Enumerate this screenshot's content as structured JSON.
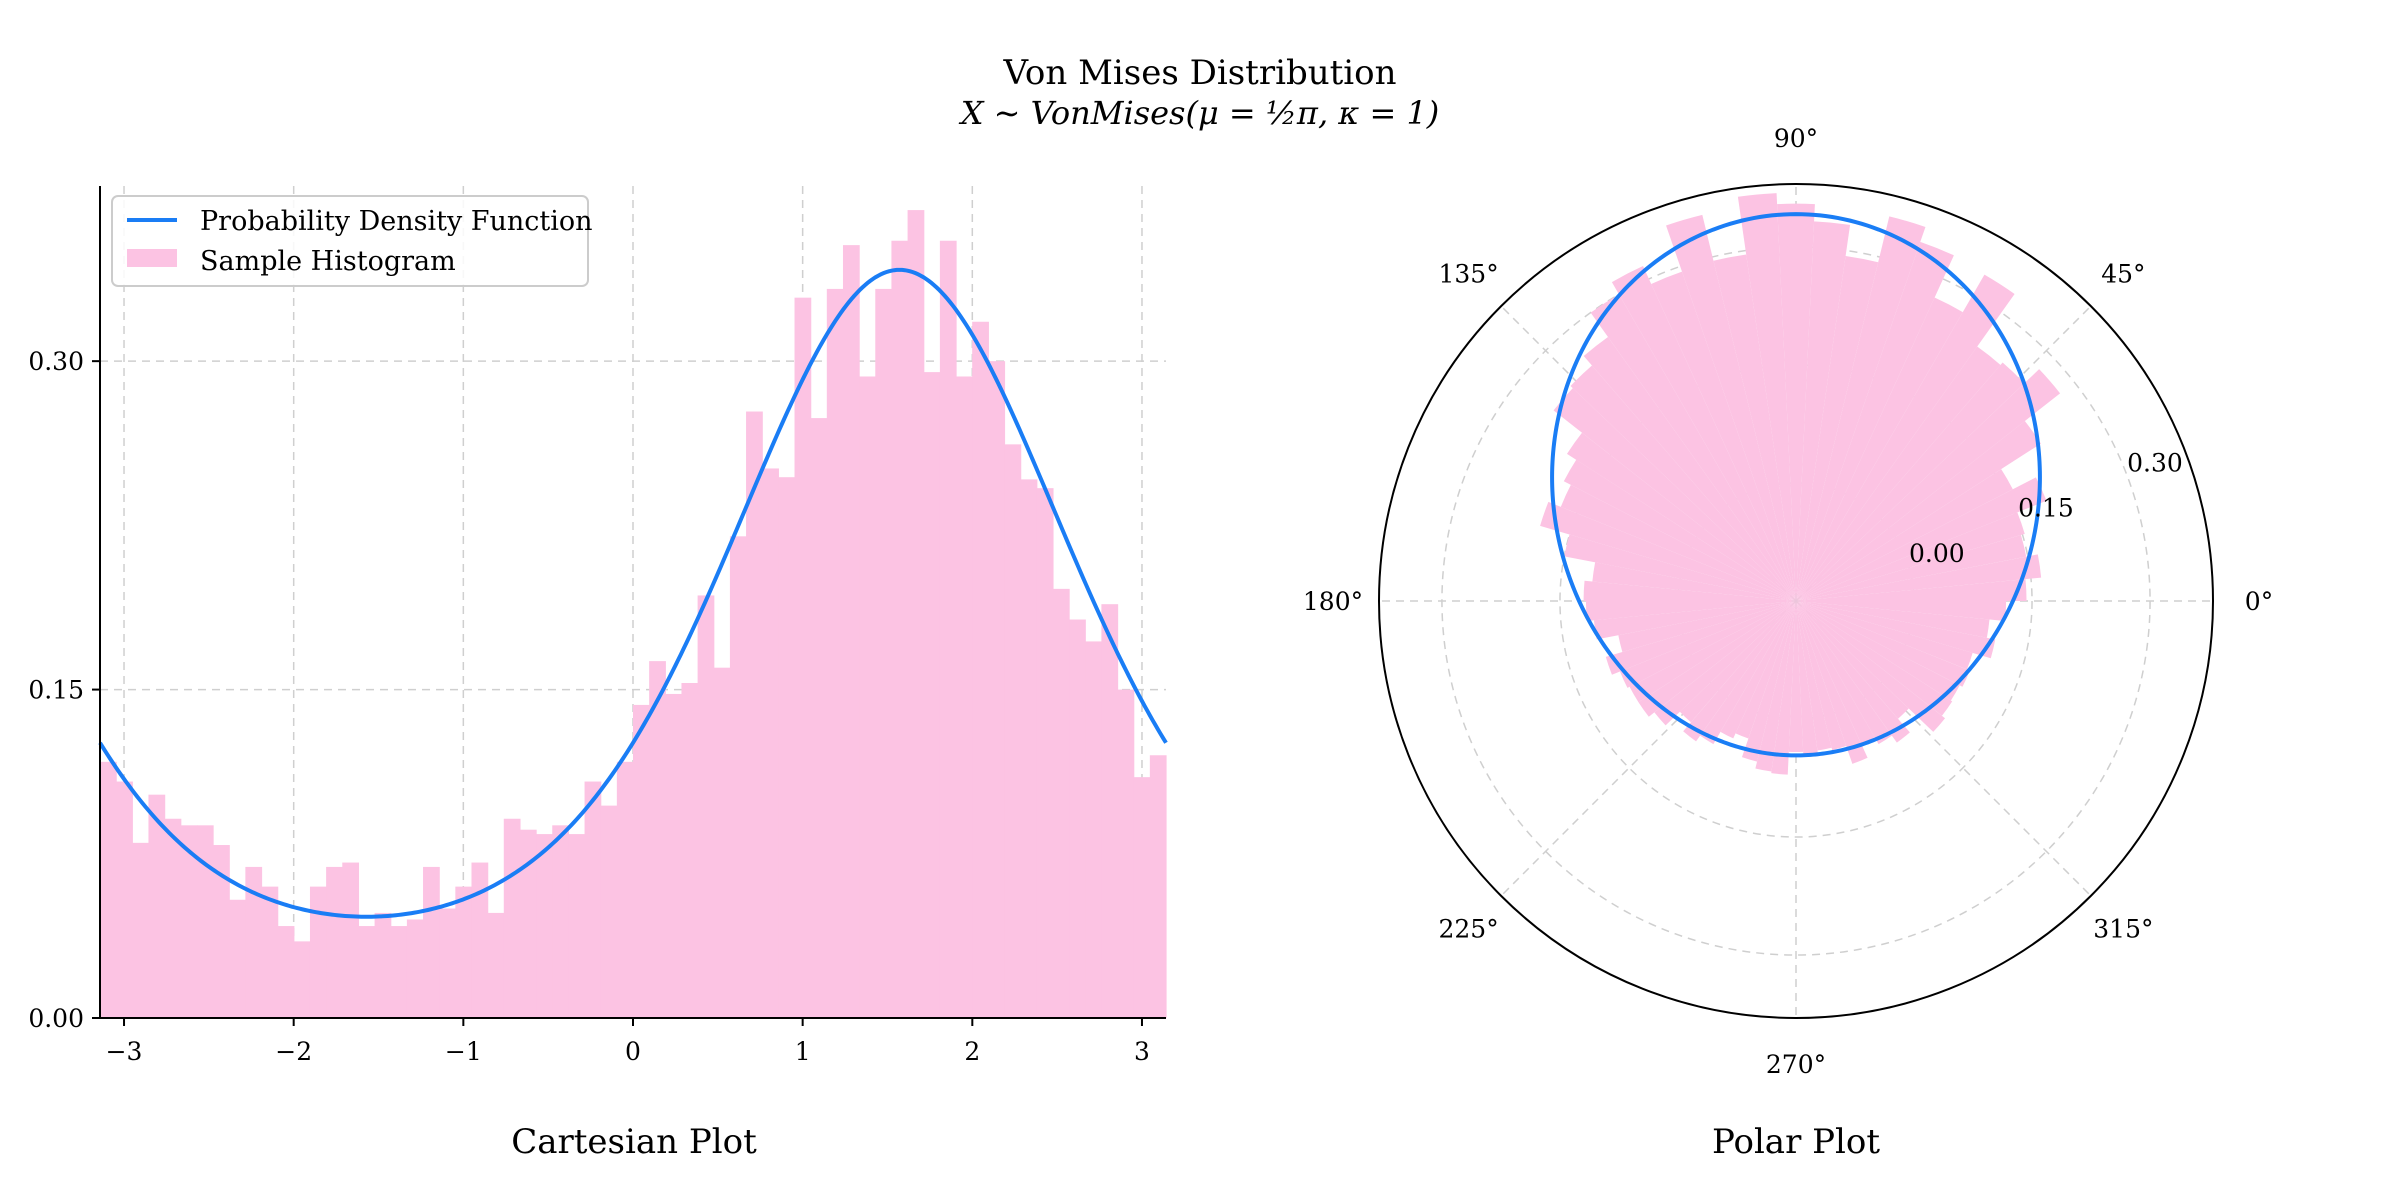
{
  "header": {
    "title": "Von Mises Distribution",
    "subtitle": "X ∼ VonMises(μ = ½π, κ = 1)"
  },
  "colors": {
    "pdf_line": "#1a7df5",
    "histogram": "#fcc3e3",
    "grid": "#cfcfcf"
  },
  "chart_data": [
    {
      "type": "bar",
      "panel_title": "Cartesian Plot",
      "xlim": [
        -3.1416,
        3.1416
      ],
      "ylim": [
        0.0,
        0.38
      ],
      "x_ticks": [
        -3,
        -2,
        -1,
        0,
        1,
        2,
        3
      ],
      "x_tick_labels": [
        "−3",
        "−2",
        "−1",
        "0",
        "1",
        "2",
        "3"
      ],
      "y_ticks": [
        0.0,
        0.15,
        0.3
      ],
      "y_tick_labels": [
        "0.00",
        "0.15",
        "0.30"
      ],
      "grid": true,
      "grid_style": "dashed",
      "legend_position": "upper-left",
      "series": [
        {
          "name": "Probability Density Function",
          "kind": "line",
          "distribution": "von_mises",
          "mu": 1.5708,
          "kappa": 1
        },
        {
          "name": "Sample Histogram",
          "kind": "histogram",
          "bin_range": [
            -3.1416,
            3.1416
          ],
          "values": [
            0.117,
            0.108,
            0.08,
            0.102,
            0.091,
            0.088,
            0.088,
            0.079,
            0.054,
            0.069,
            0.06,
            0.042,
            0.035,
            0.06,
            0.069,
            0.071,
            0.042,
            0.048,
            0.042,
            0.045,
            0.069,
            0.05,
            0.06,
            0.071,
            0.048,
            0.091,
            0.086,
            0.084,
            0.088,
            0.084,
            0.108,
            0.097,
            0.117,
            0.143,
            0.163,
            0.148,
            0.153,
            0.193,
            0.16,
            0.22,
            0.277,
            0.251,
            0.247,
            0.329,
            0.274,
            0.333,
            0.353,
            0.293,
            0.333,
            0.355,
            0.369,
            0.295,
            0.355,
            0.293,
            0.318,
            0.3,
            0.262,
            0.246,
            0.242,
            0.196,
            0.182,
            0.172,
            0.189,
            0.15,
            0.11,
            0.12
          ]
        }
      ]
    },
    {
      "type": "bar",
      "projection": "polar",
      "panel_title": "Polar Plot",
      "angle_ticks": [
        0,
        45,
        90,
        135,
        180,
        225,
        270,
        315
      ],
      "angle_tick_labels": [
        "0°",
        "45°",
        "90°",
        "135°",
        "180°",
        "225°",
        "270°",
        "315°"
      ],
      "r_min": -0.15,
      "r_max": 0.38,
      "r_ticks": [
        0.0,
        0.15,
        0.3
      ],
      "r_tick_labels": [
        "0.00",
        "0.15",
        "0.30"
      ],
      "r_label_angle_deg": 22.5,
      "grid": true,
      "grid_style": "dashed",
      "series": [
        {
          "name": "Probability Density Function",
          "kind": "line",
          "distribution": "von_mises",
          "mu": 1.5708,
          "kappa": 1
        },
        {
          "name": "Sample Histogram",
          "kind": "histogram",
          "shares_values_with": "cartesian"
        }
      ]
    }
  ]
}
